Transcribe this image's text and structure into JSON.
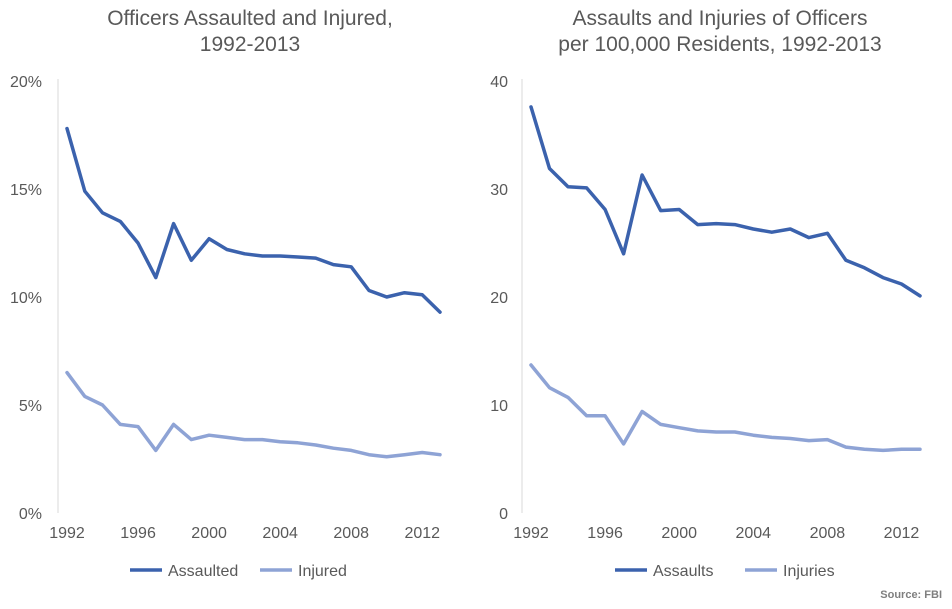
{
  "colors": {
    "primary": "#3b62ad",
    "secondary": "#8ea3d5",
    "axis": "#d9d9d9",
    "text": "#595959"
  },
  "source": "Source: FBI",
  "chart_data": [
    {
      "type": "line",
      "title_line1": "Officers Assaulted and Injured,",
      "title_line2": "1992-2013",
      "x": [
        1992,
        1993,
        1994,
        1995,
        1996,
        1997,
        1998,
        1999,
        2000,
        2001,
        2002,
        2003,
        2004,
        2005,
        2006,
        2007,
        2008,
        2009,
        2010,
        2011,
        2012,
        2013
      ],
      "xticks": [
        "1992",
        "1996",
        "2000",
        "2004",
        "2008",
        "2012"
      ],
      "yticks": [
        "0%",
        "5%",
        "10%",
        "15%",
        "20%"
      ],
      "ylim": [
        0,
        20
      ],
      "unit": "%",
      "legend": "bottom",
      "grid": false,
      "series": [
        {
          "name": "Assaulted",
          "values": [
            17.8,
            14.9,
            13.9,
            13.5,
            12.5,
            10.9,
            13.4,
            11.7,
            12.7,
            12.2,
            12.0,
            11.9,
            11.9,
            11.85,
            11.8,
            11.5,
            11.4,
            10.3,
            10.0,
            10.2,
            10.1,
            9.3
          ]
        },
        {
          "name": "Injured",
          "values": [
            6.5,
            5.4,
            5.0,
            4.1,
            4.0,
            2.9,
            4.1,
            3.4,
            3.6,
            3.5,
            3.4,
            3.4,
            3.3,
            3.25,
            3.15,
            3.0,
            2.9,
            2.7,
            2.6,
            2.7,
            2.8,
            2.7
          ]
        }
      ]
    },
    {
      "type": "line",
      "title_line1": "Assaults and Injuries of Officers",
      "title_line2": "per 100,000 Residents, 1992-2013",
      "x": [
        1992,
        1993,
        1994,
        1995,
        1996,
        1997,
        1998,
        1999,
        2000,
        2001,
        2002,
        2003,
        2004,
        2005,
        2006,
        2007,
        2008,
        2009,
        2010,
        2011,
        2012,
        2013
      ],
      "xticks": [
        "1992",
        "1996",
        "2000",
        "2004",
        "2008",
        "2012"
      ],
      "yticks": [
        "0",
        "10",
        "20",
        "30",
        "40"
      ],
      "ylim": [
        0,
        40
      ],
      "legend": "bottom",
      "grid": false,
      "series": [
        {
          "name": "Assaults",
          "values": [
            37.6,
            31.9,
            30.2,
            30.1,
            28.1,
            24.0,
            31.3,
            28.0,
            28.1,
            26.7,
            26.8,
            26.7,
            26.3,
            26.0,
            26.3,
            25.5,
            25.9,
            23.4,
            22.7,
            21.8,
            21.2,
            20.1
          ]
        },
        {
          "name": "Injuries",
          "values": [
            13.7,
            11.6,
            10.7,
            9.0,
            9.0,
            6.4,
            9.4,
            8.2,
            7.9,
            7.6,
            7.5,
            7.5,
            7.2,
            7.0,
            6.9,
            6.7,
            6.8,
            6.1,
            5.9,
            5.8,
            5.9,
            5.9
          ]
        }
      ]
    }
  ]
}
